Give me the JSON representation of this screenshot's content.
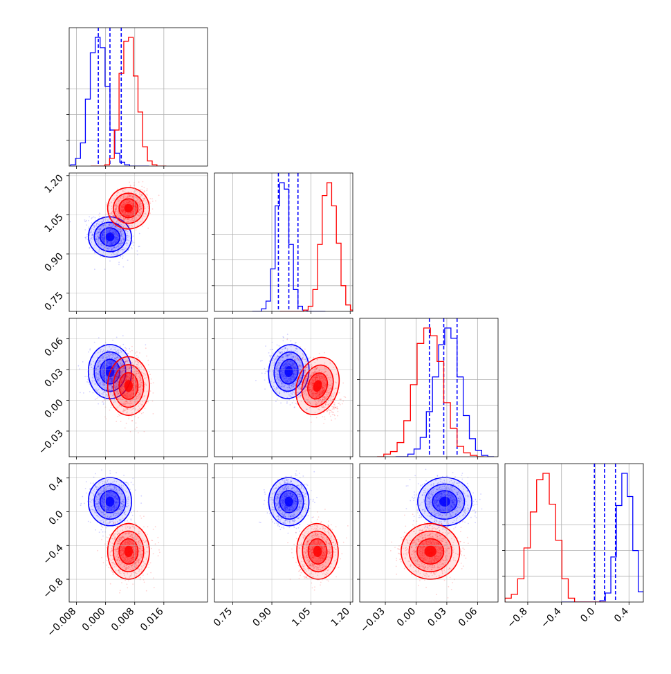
{
  "chart_data": {
    "type": "corner",
    "title": "",
    "parameters": [
      {
        "range": [
          -0.01,
          0.028
        ],
        "ticks": [
          -0.008,
          0.0,
          0.008,
          0.016
        ],
        "tick_labels": [
          "−0.008",
          "0.000",
          "0.008",
          "0.016"
        ]
      },
      {
        "range": [
          0.68,
          1.21
        ],
        "ticks": [
          0.75,
          0.9,
          1.05,
          1.2
        ],
        "tick_labels": [
          "0.75",
          "0.90",
          "1.05",
          "1.20"
        ]
      },
      {
        "range": [
          -0.055,
          0.08
        ],
        "ticks": [
          -0.03,
          0.0,
          0.03,
          0.06
        ],
        "tick_labels": [
          "−0.03",
          "0.00",
          "0.03",
          "0.06"
        ]
      },
      {
        "range": [
          -1.07,
          0.57
        ],
        "ticks": [
          -0.8,
          -0.4,
          0.0,
          0.4
        ],
        "tick_labels": [
          "−0.8",
          "−0.4",
          "0.0",
          "0.4"
        ]
      }
    ],
    "grid": true,
    "series": [
      {
        "color": "#0000ff",
        "means": [
          0.0012,
          0.965,
          0.028,
          0.12
        ],
        "sigmas": [
          0.0027,
          0.035,
          0.012,
          0.13
        ],
        "correlations": [
          [
            0,
            1,
            -0.3
          ],
          [
            0,
            2,
            0.0
          ],
          [
            0,
            3,
            0.0
          ],
          [
            1,
            2,
            -0.2
          ],
          [
            1,
            3,
            0.1
          ],
          [
            2,
            3,
            0.0
          ]
        ],
        "quantile_lines": [
          [
            -0.002,
            0.0012,
            0.0043
          ],
          [
            0.925,
            0.965,
            1.0
          ],
          [
            0.013,
            0.027,
            0.04
          ],
          [
            -0.01,
            0.11,
            0.24
          ]
        ],
        "histograms": [
          [
            0.01,
            0.06,
            0.18,
            0.52,
            0.88,
            1.0,
            0.92,
            0.62,
            0.28,
            0.1,
            0.03,
            0.01,
            0,
            0,
            0,
            0
          ],
          [
            0,
            0,
            0.02,
            0.08,
            0.33,
            0.82,
            1.0,
            0.95,
            0.52,
            0.17,
            0.04,
            0.01,
            0,
            0,
            0,
            0
          ],
          [
            0,
            0,
            0.02,
            0.06,
            0.15,
            0.35,
            0.62,
            0.87,
            1.0,
            0.92,
            0.62,
            0.32,
            0.14,
            0.05,
            0.01,
            0
          ],
          [
            0,
            0,
            0,
            0,
            0,
            0,
            0,
            0.01,
            0.07,
            0.35,
            0.75,
            1.0,
            0.82,
            0.4,
            0.08,
            0.01
          ]
        ]
      },
      {
        "color": "#ff0000",
        "means": [
          0.0063,
          1.075,
          0.014,
          -0.47
        ],
        "sigmas": [
          0.0026,
          0.036,
          0.013,
          0.15
        ],
        "correlations": [
          [
            0,
            1,
            0.3
          ],
          [
            0,
            2,
            0.0
          ],
          [
            0,
            3,
            0.0
          ],
          [
            1,
            2,
            -0.5
          ],
          [
            1,
            3,
            0.1
          ],
          [
            2,
            3,
            0.0
          ]
        ],
        "quantile_lines": [],
        "histograms": [
          [
            0,
            0,
            0,
            0.01,
            0.06,
            0.28,
            0.72,
            0.97,
            1.0,
            0.7,
            0.42,
            0.15,
            0.04,
            0.01,
            0,
            0
          ],
          [
            0,
            0,
            0,
            0,
            0,
            0.01,
            0.04,
            0.17,
            0.52,
            0.9,
            1.0,
            0.82,
            0.53,
            0.2,
            0.05,
            0.01
          ],
          [
            0,
            0.02,
            0.04,
            0.11,
            0.28,
            0.56,
            0.88,
            1.0,
            0.94,
            0.74,
            0.42,
            0.22,
            0.08,
            0.03,
            0.01,
            0
          ],
          [
            0.03,
            0.06,
            0.18,
            0.42,
            0.7,
            0.95,
            1.0,
            0.76,
            0.48,
            0.18,
            0.03,
            0,
            0,
            0,
            0,
            0
          ]
        ]
      }
    ]
  }
}
